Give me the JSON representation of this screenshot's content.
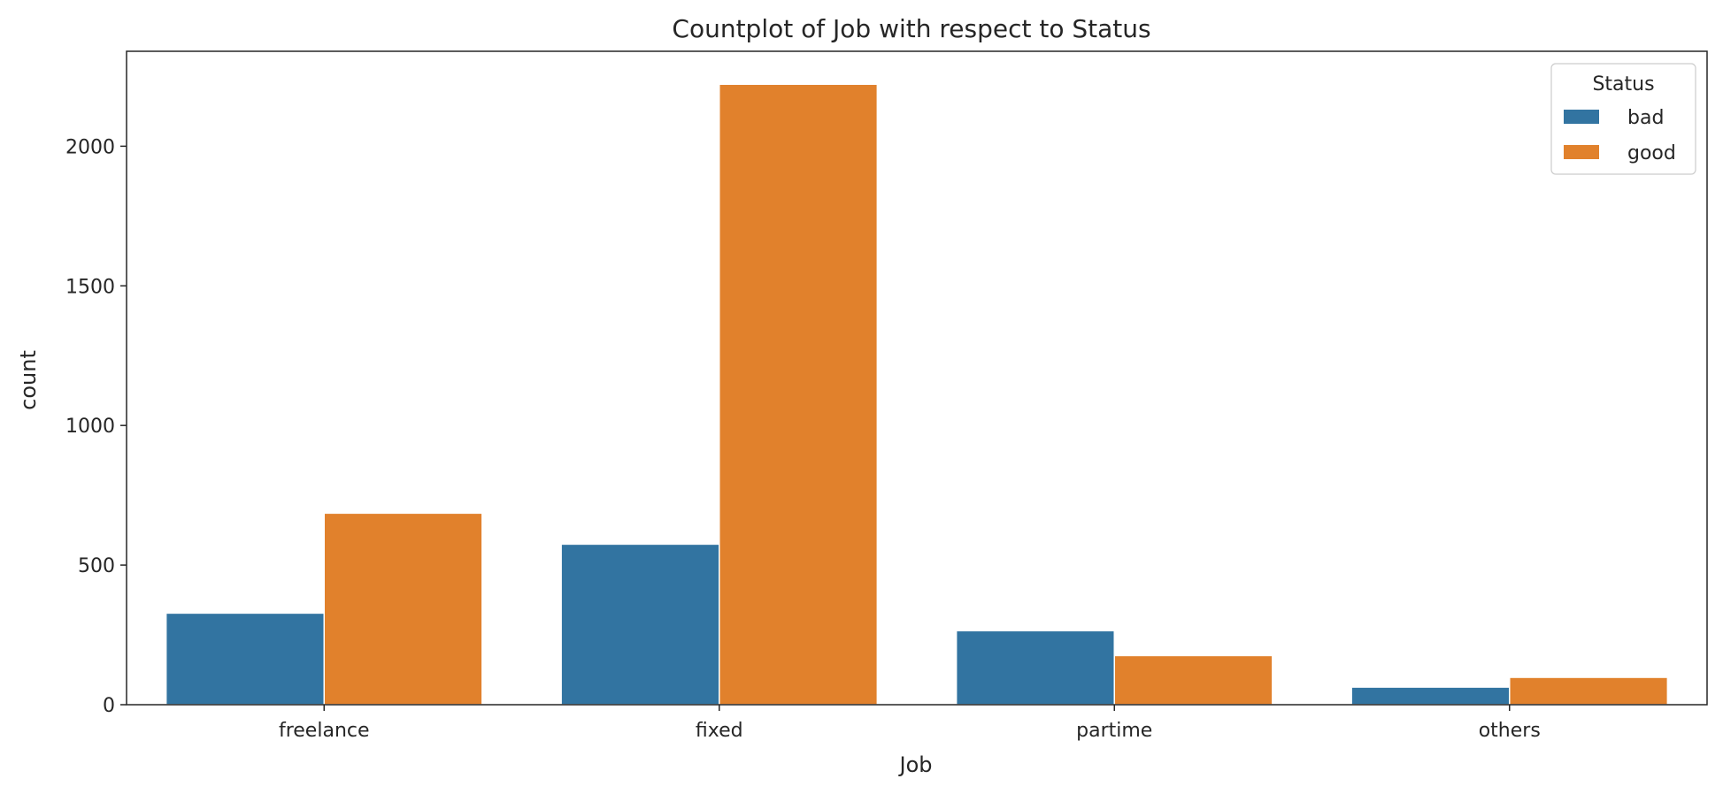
{
  "chart_data": {
    "type": "bar",
    "title": "Countplot of Job with respect to Status",
    "xlabel": "Job",
    "ylabel": "count",
    "categories": [
      "freelance",
      "fixed",
      "partime",
      "others"
    ],
    "series": [
      {
        "name": "bad",
        "values": [
          328,
          575,
          265,
          63
        ],
        "color": "#3274a1"
      },
      {
        "name": "good",
        "values": [
          686,
          2222,
          176,
          98
        ],
        "color": "#e1812c"
      }
    ],
    "ylim": [
      0,
      2340
    ],
    "yticks": [
      0,
      500,
      1000,
      1500,
      2000
    ],
    "grid": false,
    "legend": {
      "title": "Status",
      "placement": "top-right"
    }
  }
}
